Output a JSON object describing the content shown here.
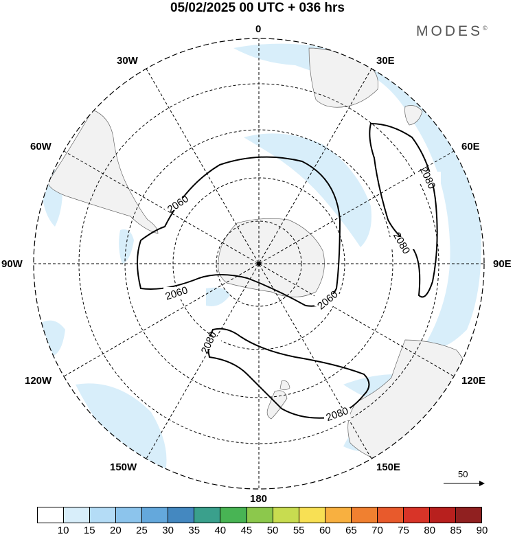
{
  "title": "05/02/2025  00 UTC  + 036 hrs",
  "brand": "MODES",
  "brand_mark": "©",
  "longitude_labels": {
    "l0": "0",
    "l30e": "30E",
    "l60e": "60E",
    "l90e": "90E",
    "l120e": "120E",
    "l150e": "150E",
    "l180": "180",
    "l150w": "150W",
    "l120w": "120W",
    "l90w": "90W",
    "l60w": "60W",
    "l30w": "30W"
  },
  "contour_labels": {
    "c1": "2060",
    "c2": "2060",
    "c3": "2060",
    "c4": "2080",
    "c5": "2080",
    "c6": "2080",
    "c7": "2080"
  },
  "vector_reference": "50",
  "legend": {
    "ticks": [
      "10",
      "15",
      "20",
      "25",
      "30",
      "35",
      "40",
      "45",
      "50",
      "55",
      "60",
      "65",
      "70",
      "75",
      "80",
      "85",
      "90"
    ],
    "colors": [
      "#ffffff",
      "#d8eefa",
      "#b4dcf6",
      "#8cc4ec",
      "#64a8dc",
      "#4488c0",
      "#3aa08c",
      "#48b454",
      "#8cc84c",
      "#c8dc50",
      "#f8e054",
      "#f8b040",
      "#f08030",
      "#e85a2c",
      "#d83428",
      "#b8201e",
      "#902020"
    ]
  },
  "colors": {
    "land": "#f2f2f2",
    "wind_light": "#d8eefa",
    "contour": "#000000"
  }
}
